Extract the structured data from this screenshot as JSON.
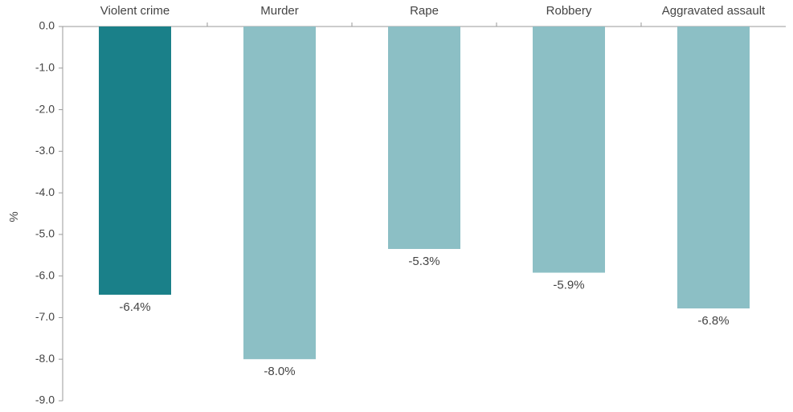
{
  "chart_data": {
    "type": "bar",
    "title": "",
    "xlabel": "",
    "ylabel": "%",
    "categories": [
      "Violent crime",
      "Murder",
      "Rape",
      "Robbery",
      "Aggravated assault"
    ],
    "values": [
      -6.45,
      -8.0,
      -5.35,
      -5.92,
      -6.78
    ],
    "data_labels": [
      "-6.4%",
      "-8.0%",
      "-5.3%",
      "-5.9%",
      "-6.8%"
    ],
    "ylim": [
      -9.0,
      0.0
    ],
    "yticks": [
      0.0,
      -1.0,
      -2.0,
      -3.0,
      -4.0,
      -5.0,
      -6.0,
      -7.0,
      -8.0,
      -9.0
    ],
    "ytick_labels": [
      "0.0",
      "-1.0",
      "-2.0",
      "-3.0",
      "-4.0",
      "-5.0",
      "-6.0",
      "-7.0",
      "-8.0",
      "-9.0"
    ],
    "category_axis_position": "top",
    "grid": false,
    "legend": "none",
    "colors": {
      "highlight": "#1a8089",
      "default": "#8cbfc5",
      "axis": "#999999",
      "text": "#444444"
    },
    "highlight_index": 0
  }
}
